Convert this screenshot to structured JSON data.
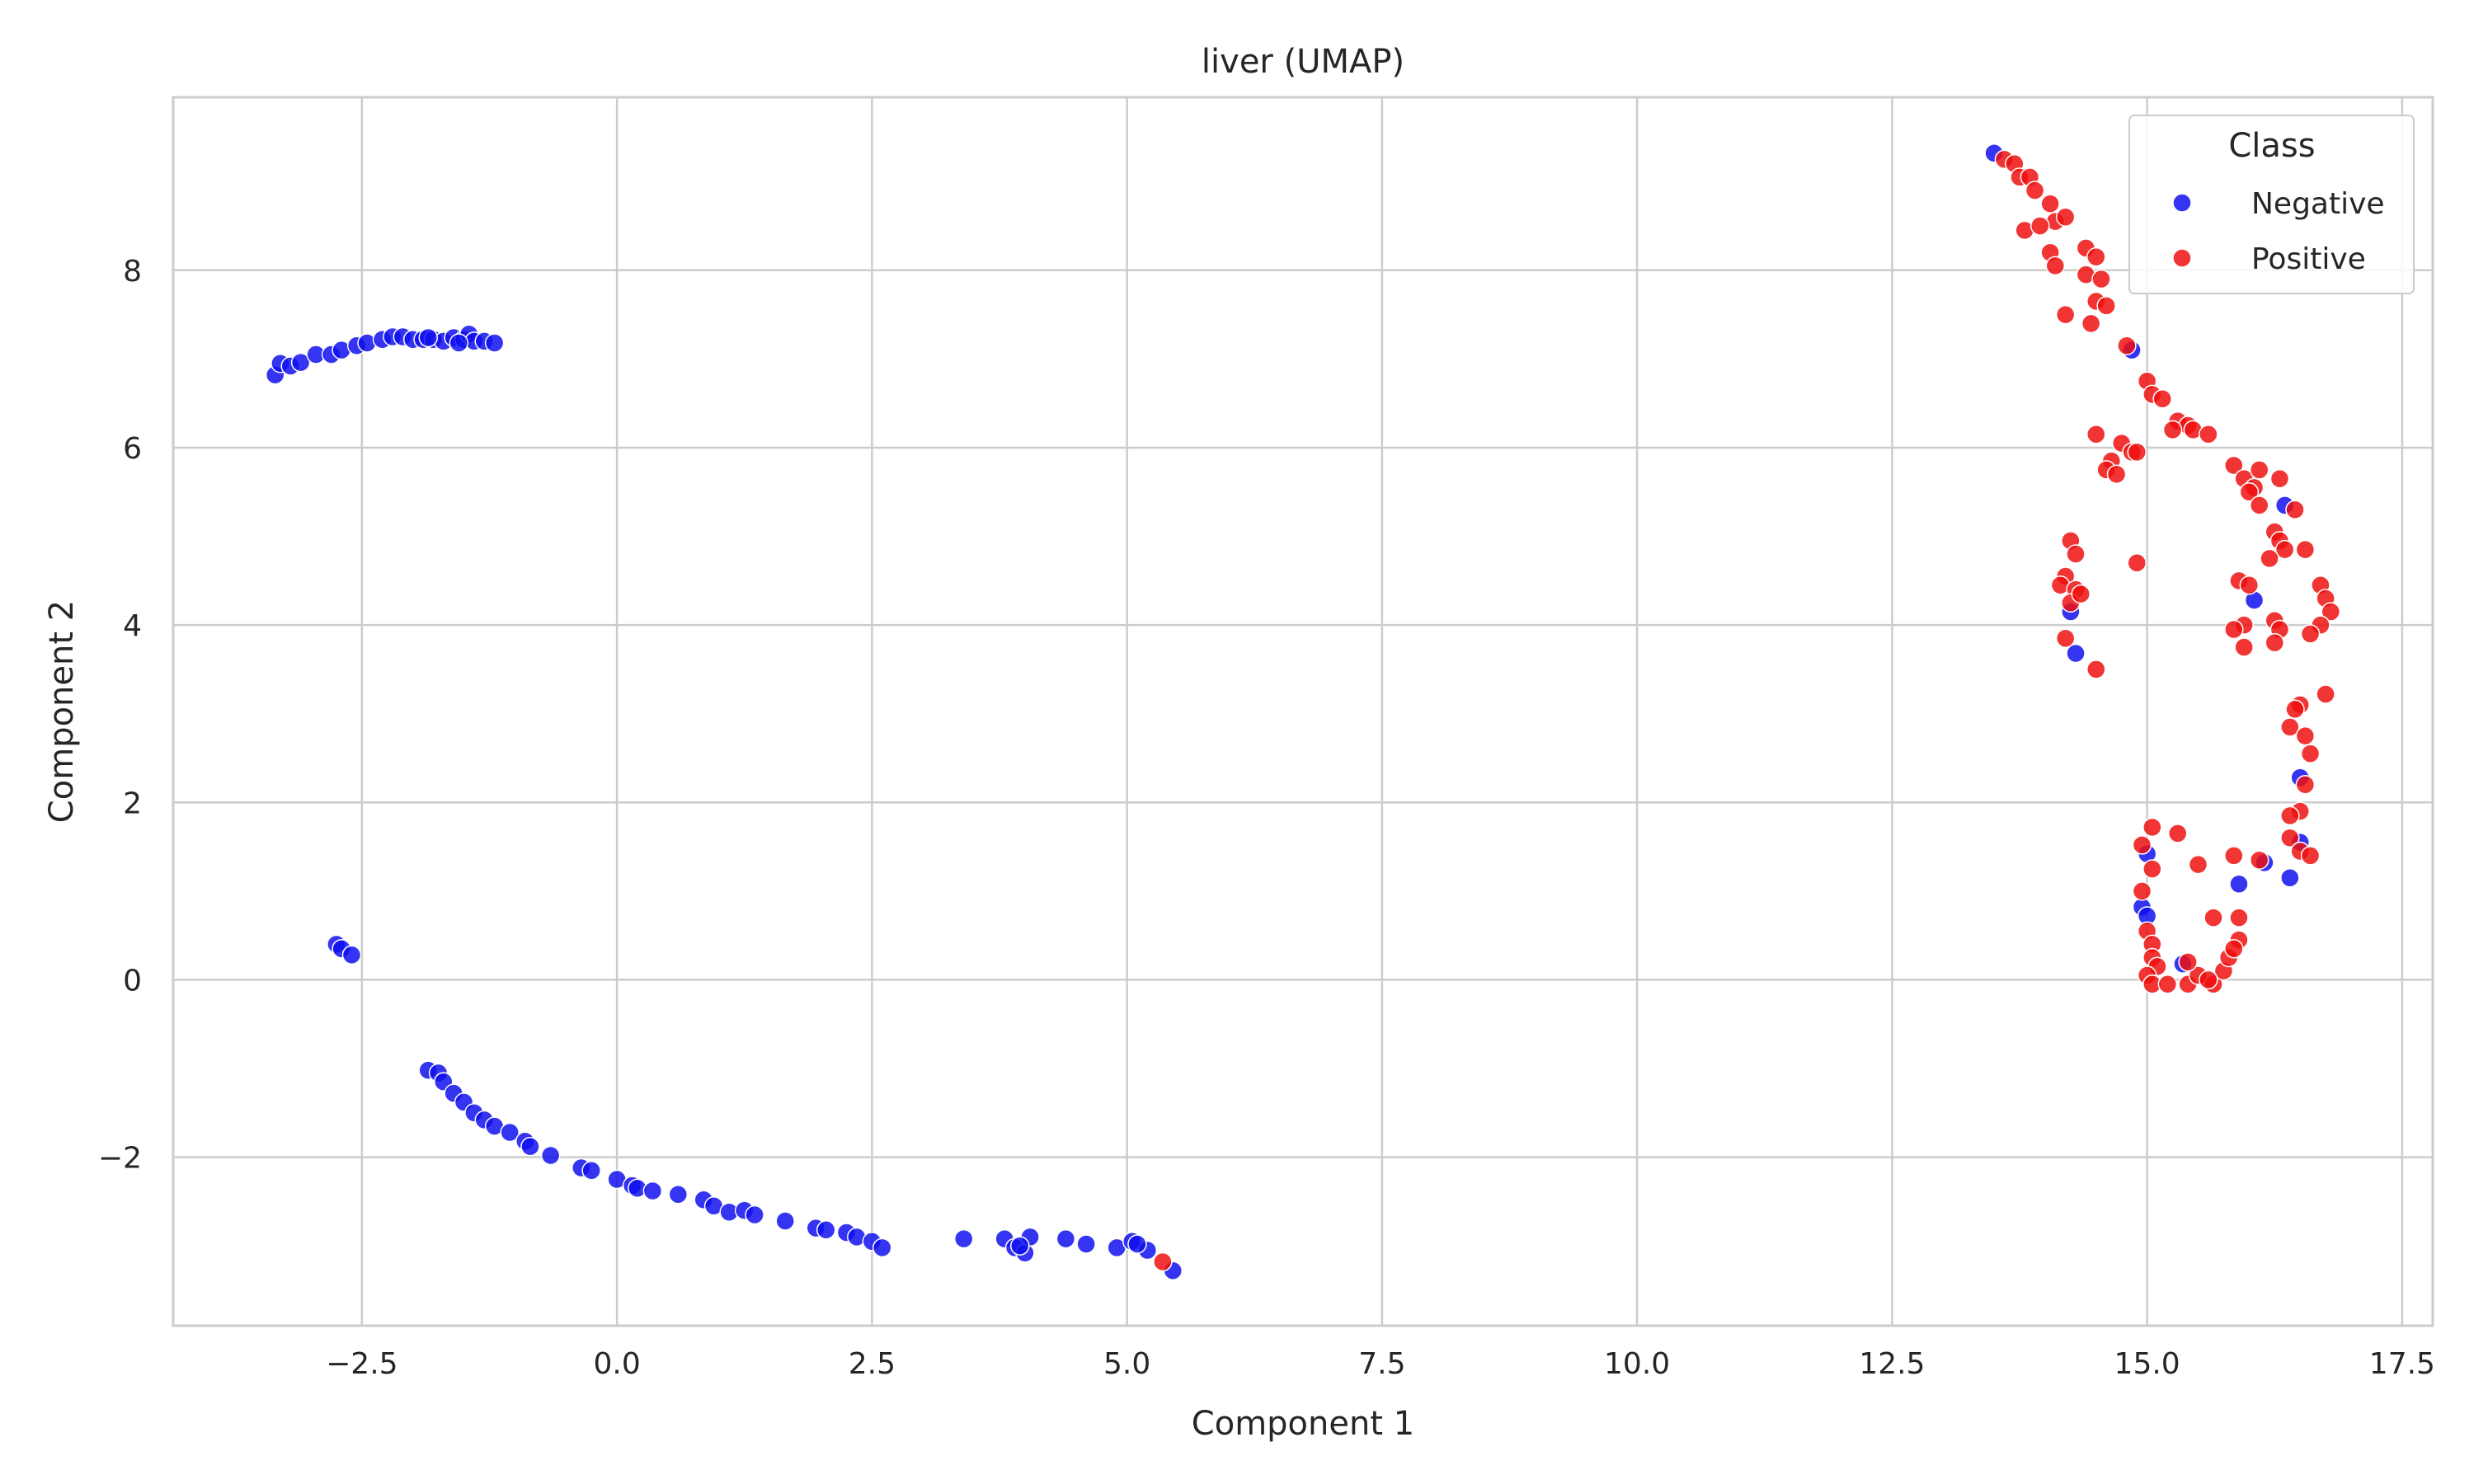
{
  "chart_data": {
    "type": "scatter",
    "title": "liver (UMAP)",
    "xlabel": "Component 1",
    "ylabel": "Component 2",
    "xlim": [
      -4.35,
      17.8
    ],
    "ylim": [
      -3.9,
      9.95
    ],
    "xticks": [
      -2.5,
      0.0,
      2.5,
      5.0,
      7.5,
      10.0,
      12.5,
      15.0,
      17.5
    ],
    "xtick_labels": [
      "−2.5",
      "0.0",
      "2.5",
      "5.0",
      "7.5",
      "10.0",
      "12.5",
      "15.0",
      "17.5"
    ],
    "yticks": [
      -2,
      0,
      2,
      4,
      6,
      8
    ],
    "ytick_labels": [
      "−2",
      "0",
      "2",
      "4",
      "6",
      "8"
    ],
    "grid": true,
    "legend": {
      "title": "Class",
      "position": "top-right"
    },
    "colors": {
      "Negative": "#1010ee",
      "Positive": "#ee1010"
    },
    "series": [
      {
        "name": "Negative",
        "points": [
          [
            -3.35,
            6.82
          ],
          [
            -3.3,
            6.95
          ],
          [
            -3.2,
            6.92
          ],
          [
            -3.1,
            6.96
          ],
          [
            -2.95,
            7.05
          ],
          [
            -2.8,
            7.05
          ],
          [
            -2.7,
            7.1
          ],
          [
            -2.55,
            7.15
          ],
          [
            -2.45,
            7.18
          ],
          [
            -2.3,
            7.22
          ],
          [
            -2.2,
            7.25
          ],
          [
            -2.1,
            7.25
          ],
          [
            -2.0,
            7.22
          ],
          [
            -1.9,
            7.22
          ],
          [
            -1.8,
            7.22
          ],
          [
            -1.7,
            7.2
          ],
          [
            -1.6,
            7.24
          ],
          [
            -1.5,
            7.22
          ],
          [
            -1.45,
            7.28
          ],
          [
            -1.4,
            7.2
          ],
          [
            -1.3,
            7.2
          ],
          [
            -1.2,
            7.18
          ],
          [
            -1.55,
            7.18
          ],
          [
            -1.85,
            7.24
          ],
          [
            -2.75,
            0.4
          ],
          [
            -2.7,
            0.35
          ],
          [
            -2.6,
            0.28
          ],
          [
            -1.85,
            -1.02
          ],
          [
            -1.75,
            -1.05
          ],
          [
            -1.7,
            -1.15
          ],
          [
            -1.6,
            -1.28
          ],
          [
            -1.5,
            -1.38
          ],
          [
            -1.4,
            -1.5
          ],
          [
            -1.3,
            -1.58
          ],
          [
            -1.2,
            -1.65
          ],
          [
            -1.05,
            -1.72
          ],
          [
            -0.9,
            -1.82
          ],
          [
            -0.85,
            -1.88
          ],
          [
            -0.65,
            -1.98
          ],
          [
            -0.35,
            -2.12
          ],
          [
            -0.25,
            -2.15
          ],
          [
            0.0,
            -2.25
          ],
          [
            0.15,
            -2.32
          ],
          [
            0.2,
            -2.35
          ],
          [
            0.35,
            -2.38
          ],
          [
            0.6,
            -2.42
          ],
          [
            0.85,
            -2.48
          ],
          [
            0.95,
            -2.55
          ],
          [
            1.1,
            -2.62
          ],
          [
            1.25,
            -2.6
          ],
          [
            1.35,
            -2.65
          ],
          [
            1.65,
            -2.72
          ],
          [
            1.95,
            -2.8
          ],
          [
            2.05,
            -2.82
          ],
          [
            2.25,
            -2.85
          ],
          [
            2.35,
            -2.9
          ],
          [
            2.5,
            -2.95
          ],
          [
            2.6,
            -3.02
          ],
          [
            3.4,
            -2.92
          ],
          [
            3.8,
            -2.92
          ],
          [
            3.9,
            -3.02
          ],
          [
            4.0,
            -3.08
          ],
          [
            4.05,
            -2.9
          ],
          [
            4.4,
            -2.92
          ],
          [
            4.6,
            -2.98
          ],
          [
            4.9,
            -3.02
          ],
          [
            5.05,
            -2.95
          ],
          [
            5.2,
            -3.05
          ],
          [
            5.45,
            -3.28
          ],
          [
            3.95,
            -3.0
          ],
          [
            5.1,
            -2.98
          ],
          [
            13.5,
            9.32
          ],
          [
            14.85,
            7.1
          ],
          [
            14.25,
            4.15
          ],
          [
            14.3,
            3.68
          ],
          [
            15.0,
            1.42
          ],
          [
            14.95,
            0.82
          ],
          [
            15.0,
            0.72
          ],
          [
            15.35,
            0.18
          ],
          [
            16.05,
            4.28
          ],
          [
            16.35,
            5.35
          ],
          [
            16.5,
            2.28
          ],
          [
            16.5,
            1.55
          ],
          [
            16.15,
            1.32
          ],
          [
            15.9,
            1.08
          ],
          [
            16.4,
            1.15
          ]
        ]
      },
      {
        "name": "Positive",
        "points": [
          [
            13.6,
            9.25
          ],
          [
            13.7,
            9.2
          ],
          [
            13.75,
            9.05
          ],
          [
            13.85,
            9.05
          ],
          [
            13.9,
            8.9
          ],
          [
            14.05,
            8.75
          ],
          [
            14.1,
            8.55
          ],
          [
            14.2,
            8.6
          ],
          [
            13.8,
            8.45
          ],
          [
            13.95,
            8.5
          ],
          [
            14.05,
            8.2
          ],
          [
            14.1,
            8.05
          ],
          [
            14.4,
            8.25
          ],
          [
            14.5,
            8.15
          ],
          [
            14.4,
            7.95
          ],
          [
            14.55,
            7.9
          ],
          [
            14.5,
            7.65
          ],
          [
            14.6,
            7.6
          ],
          [
            14.2,
            7.5
          ],
          [
            14.45,
            7.4
          ],
          [
            14.8,
            7.15
          ],
          [
            15.0,
            6.75
          ],
          [
            15.05,
            6.6
          ],
          [
            15.15,
            6.55
          ],
          [
            15.3,
            6.3
          ],
          [
            15.4,
            6.25
          ],
          [
            15.45,
            6.2
          ],
          [
            15.6,
            6.15
          ],
          [
            15.25,
            6.2
          ],
          [
            14.5,
            6.15
          ],
          [
            14.75,
            6.05
          ],
          [
            14.85,
            5.95
          ],
          [
            14.9,
            5.95
          ],
          [
            14.65,
            5.85
          ],
          [
            14.6,
            5.75
          ],
          [
            14.7,
            5.7
          ],
          [
            15.85,
            5.8
          ],
          [
            15.95,
            5.65
          ],
          [
            16.05,
            5.55
          ],
          [
            16.1,
            5.75
          ],
          [
            16.3,
            5.65
          ],
          [
            16.0,
            5.5
          ],
          [
            16.1,
            5.35
          ],
          [
            16.45,
            5.3
          ],
          [
            16.25,
            5.05
          ],
          [
            16.3,
            4.95
          ],
          [
            16.35,
            4.85
          ],
          [
            16.55,
            4.85
          ],
          [
            16.2,
            4.75
          ],
          [
            14.25,
            4.95
          ],
          [
            14.3,
            4.8
          ],
          [
            14.2,
            4.55
          ],
          [
            14.15,
            4.45
          ],
          [
            14.3,
            4.4
          ],
          [
            14.25,
            4.25
          ],
          [
            14.35,
            4.35
          ],
          [
            14.9,
            4.7
          ],
          [
            15.9,
            4.5
          ],
          [
            16.0,
            4.45
          ],
          [
            16.7,
            4.45
          ],
          [
            16.75,
            4.3
          ],
          [
            16.8,
            4.15
          ],
          [
            16.7,
            4.0
          ],
          [
            15.95,
            4.0
          ],
          [
            16.25,
            4.05
          ],
          [
            16.3,
            3.95
          ],
          [
            16.6,
            3.9
          ],
          [
            15.85,
            3.95
          ],
          [
            16.25,
            3.8
          ],
          [
            15.95,
            3.75
          ],
          [
            14.2,
            3.85
          ],
          [
            14.5,
            3.5
          ],
          [
            16.75,
            3.22
          ],
          [
            16.5,
            3.1
          ],
          [
            16.45,
            3.05
          ],
          [
            16.4,
            2.85
          ],
          [
            16.55,
            2.75
          ],
          [
            16.6,
            2.55
          ],
          [
            16.55,
            2.2
          ],
          [
            16.5,
            1.9
          ],
          [
            16.4,
            1.85
          ],
          [
            16.4,
            1.6
          ],
          [
            16.5,
            1.45
          ],
          [
            16.6,
            1.4
          ],
          [
            16.1,
            1.35
          ],
          [
            15.05,
            1.72
          ],
          [
            15.3,
            1.65
          ],
          [
            14.95,
            1.52
          ],
          [
            15.05,
            1.25
          ],
          [
            15.5,
            1.3
          ],
          [
            15.85,
            1.4
          ],
          [
            14.95,
            1.0
          ],
          [
            15.0,
            0.55
          ],
          [
            15.05,
            0.4
          ],
          [
            15.05,
            0.25
          ],
          [
            15.1,
            0.15
          ],
          [
            15.0,
            0.05
          ],
          [
            15.05,
            -0.05
          ],
          [
            15.2,
            -0.05
          ],
          [
            15.4,
            -0.05
          ],
          [
            15.5,
            0.05
          ],
          [
            15.65,
            -0.05
          ],
          [
            15.75,
            0.1
          ],
          [
            15.8,
            0.25
          ],
          [
            15.9,
            0.7
          ],
          [
            15.9,
            0.45
          ],
          [
            15.85,
            0.35
          ],
          [
            15.65,
            0.7
          ],
          [
            15.4,
            0.2
          ],
          [
            15.6,
            0.0
          ],
          [
            5.35,
            -3.18
          ]
        ]
      }
    ]
  }
}
